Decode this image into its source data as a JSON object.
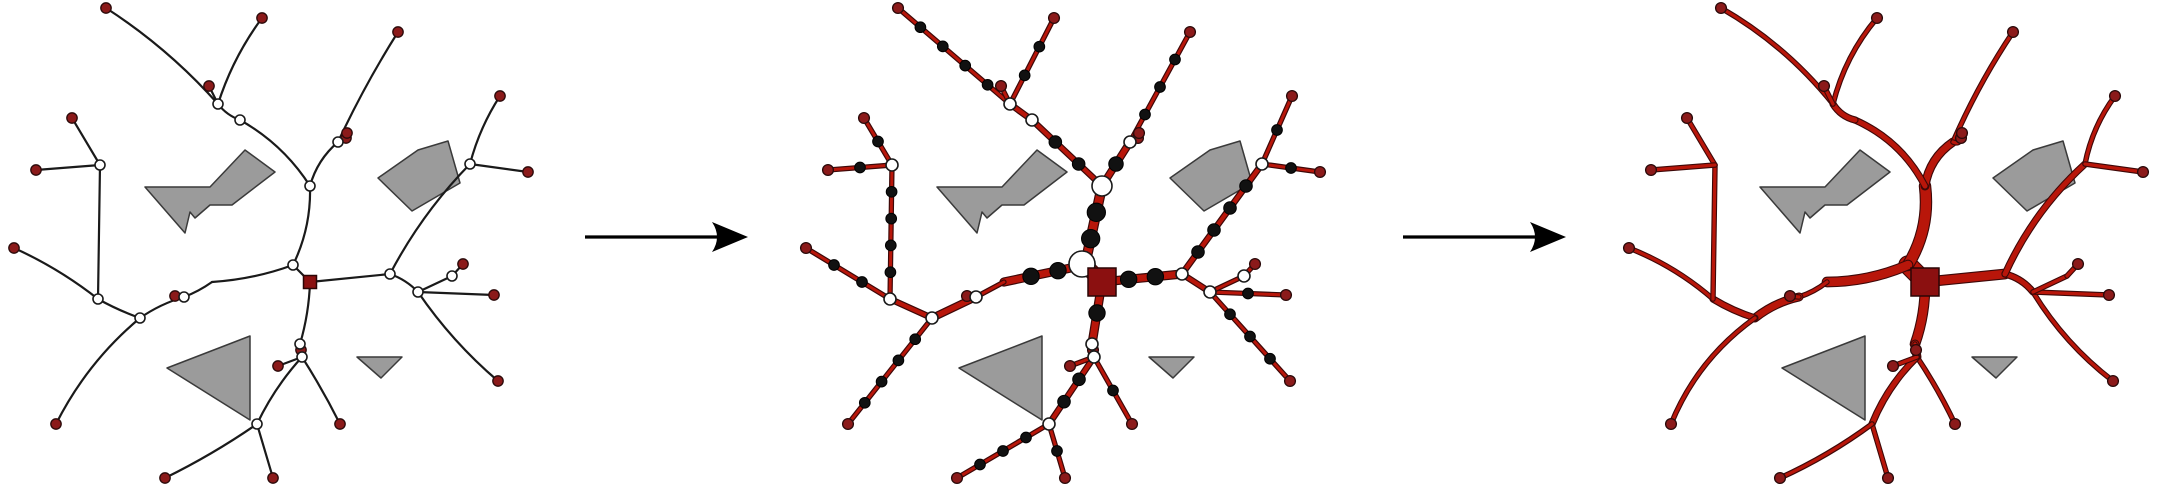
{
  "figure": {
    "panel_count": 3,
    "arrow_count": 2,
    "colors": {
      "terminal": "#8b1a1a",
      "root": "#8b1010",
      "edge_outline": "#3d0808",
      "edge_fill": "#b8160a",
      "obstacle": "#9b9b9b",
      "obstacle_stroke": "#3a3a3a",
      "steiner_node": "#ffffff",
      "subdivision_node": "#111111"
    },
    "panels": [
      {
        "name": "steiner-tree-thin"
      },
      {
        "name": "subdivided-tree-with-flow-widths"
      },
      {
        "name": "smooth-flow-map"
      }
    ]
  }
}
